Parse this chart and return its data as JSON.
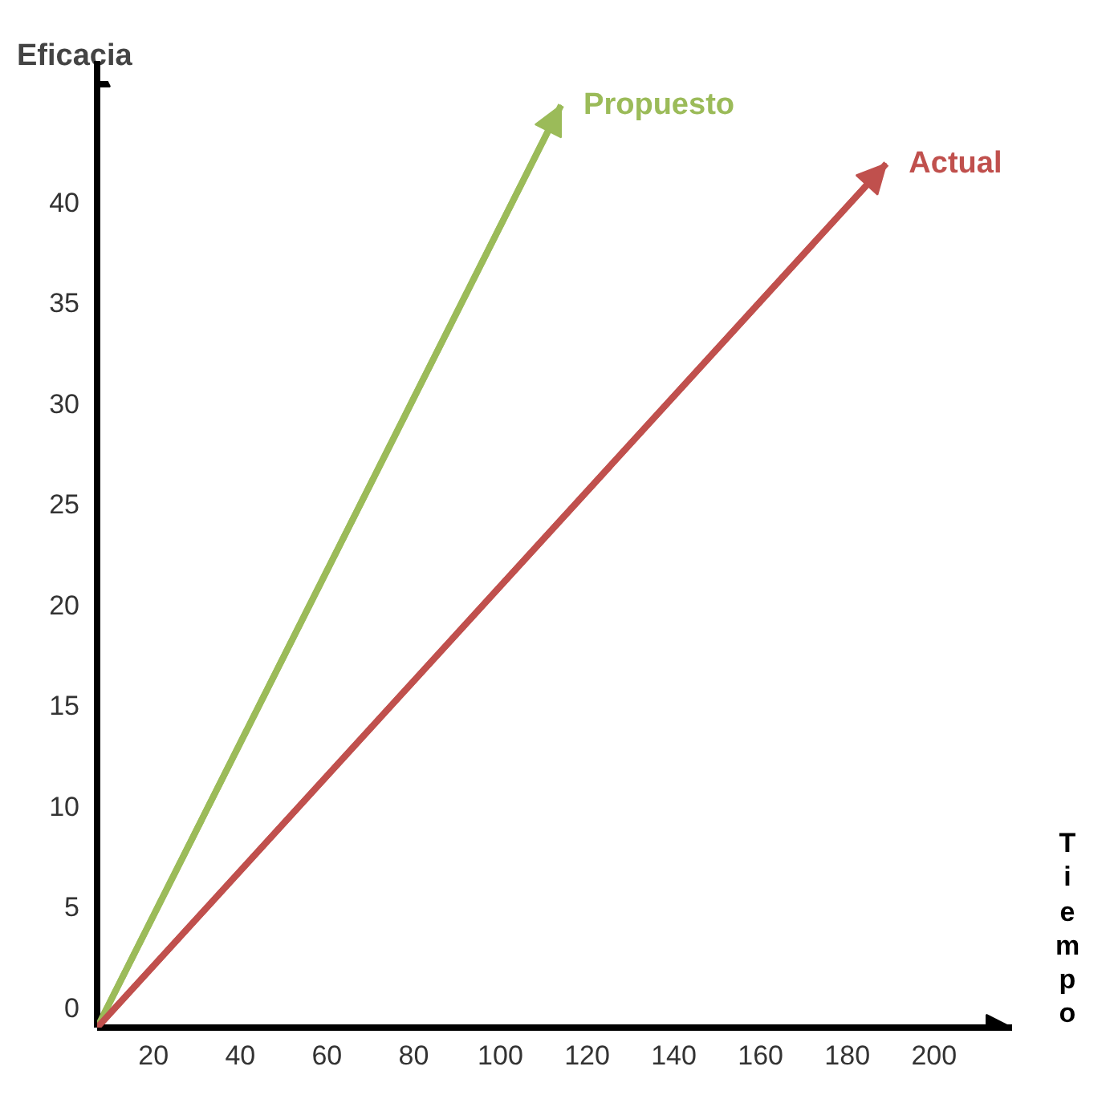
{
  "chart_data": {
    "type": "line",
    "xlabel": "Tiempo",
    "ylabel": "Eficacia",
    "series": [
      {
        "name": "Propuesto",
        "color": "#9bbb59",
        "x": [
          7,
          114
        ],
        "values": [
          -1,
          44.8
        ]
      },
      {
        "name": "Actual",
        "color": "#c0504d",
        "x": [
          7,
          189
        ],
        "values": [
          -1,
          41.9
        ]
      }
    ],
    "xlim": [
      7,
      218
    ],
    "ylim": [
      -1,
      46
    ],
    "xticks": [
      20,
      40,
      60,
      80,
      100,
      120,
      140,
      160,
      180,
      200
    ],
    "yticks": [
      0,
      5,
      10,
      15,
      20,
      25,
      30,
      35,
      40
    ],
    "grid": false,
    "legend": "top right",
    "marker": "none",
    "line_style": "solid"
  }
}
